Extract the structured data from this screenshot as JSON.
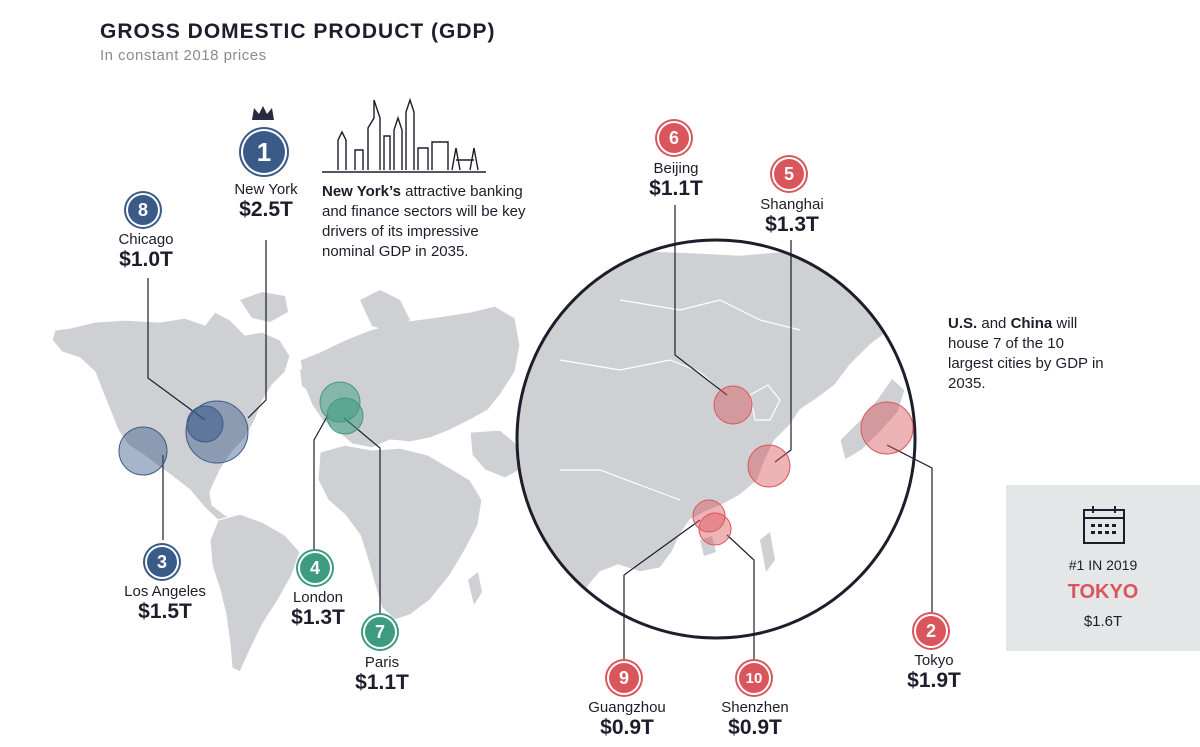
{
  "header": {
    "title": "GROSS DOMESTIC PRODUCT (GDP)",
    "subtitle": "In constant 2018 prices"
  },
  "cities": [
    {
      "rank": "1",
      "name": "New York",
      "value": "$2.5T",
      "region": "us"
    },
    {
      "rank": "2",
      "name": "Tokyo",
      "value": "$1.9T",
      "region": "asia"
    },
    {
      "rank": "3",
      "name": "Los Angeles",
      "value": "$1.5T",
      "region": "us"
    },
    {
      "rank": "4",
      "name": "London",
      "value": "$1.3T",
      "region": "europe"
    },
    {
      "rank": "5",
      "name": "Shanghai",
      "value": "$1.3T",
      "region": "asia"
    },
    {
      "rank": "6",
      "name": "Beijing",
      "value": "$1.1T",
      "region": "asia"
    },
    {
      "rank": "7",
      "name": "Paris",
      "value": "$1.1T",
      "region": "europe"
    },
    {
      "rank": "8",
      "name": "Chicago",
      "value": "$1.0T",
      "region": "us"
    },
    {
      "rank": "9",
      "name": "Guangzhou",
      "value": "$0.9T",
      "region": "asia"
    },
    {
      "rank": "10",
      "name": "Shenzhen",
      "value": "$0.9T",
      "region": "asia"
    }
  ],
  "notes": {
    "newyork": {
      "bold": "New York’s",
      "rest": " attractive banking and finance sectors will be key drivers of its impressive nominal GDP in 2035."
    },
    "china": {
      "bold1": "U.S.",
      "mid": " and ",
      "bold2": "China",
      "rest": " will house 7 of the 10 largest cities by GDP in 2035."
    }
  },
  "highlight": {
    "rank_label": "#1 IN 2019",
    "city": "TOKYO",
    "value": "$1.6T"
  },
  "icons": {
    "crown": "crown-icon",
    "skyline": "new-york-skyline-icon",
    "calendar": "calendar-icon"
  },
  "colors": {
    "us": "#3a5a88",
    "europe": "#3d9b7f",
    "asia": "#d9565c",
    "land": "#cfd0d3",
    "text": "#1d1d2b"
  }
}
